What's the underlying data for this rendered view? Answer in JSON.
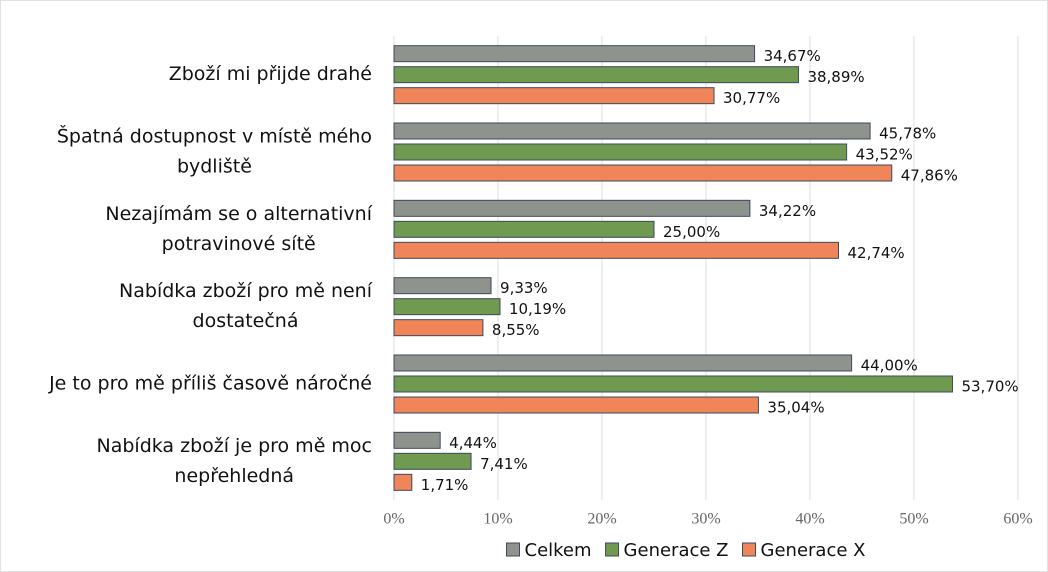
{
  "chart_data": {
    "type": "hbar",
    "categories": [
      [
        "Zboží mi přijde drahé"
      ],
      [
        "Špatná dostupnost v místě mého",
        "bydliště"
      ],
      [
        "Nezajímám se o alternativní",
        "potravinové sítě"
      ],
      [
        "Nabídka zboží pro mě není",
        "dostatečná"
      ],
      [
        "Je to pro mě příliš časově náročné"
      ],
      [
        "Nabídka zboží je pro mě moc",
        "nepřehledná"
      ]
    ],
    "series": [
      {
        "name": "Celkem",
        "color": "#8e938d",
        "values": [
          34.67,
          45.78,
          34.22,
          9.33,
          44.0,
          4.44
        ],
        "value_labels": [
          "34,67%",
          "45,78%",
          "34,22%",
          "9,33%",
          "44,00%",
          "4,44%"
        ]
      },
      {
        "name": "Generace Z",
        "color": "#6f9a50",
        "values": [
          38.89,
          43.52,
          25.0,
          10.19,
          53.7,
          7.41
        ],
        "value_labels": [
          "38,89%",
          "43,52%",
          "25,00%",
          "10,19%",
          "53,70%",
          "7,41%"
        ]
      },
      {
        "name": "Generace X",
        "color": "#f0855a",
        "values": [
          30.77,
          47.86,
          42.74,
          8.55,
          35.04,
          1.71
        ],
        "value_labels": [
          "30,77%",
          "47,86%",
          "42,74%",
          "8,55%",
          "35,04%",
          "1,71%"
        ]
      }
    ],
    "xlim": [
      0,
      60
    ],
    "xticks": [
      {
        "value": 0,
        "label": "0%"
      },
      {
        "value": 10,
        "label": "10%"
      },
      {
        "value": 20,
        "label": "20%"
      },
      {
        "value": 30,
        "label": "30%"
      },
      {
        "value": 40,
        "label": "40%"
      },
      {
        "value": 50,
        "label": "50%"
      },
      {
        "value": 60,
        "label": "60%"
      }
    ],
    "grid": true,
    "legend": "bottom"
  }
}
